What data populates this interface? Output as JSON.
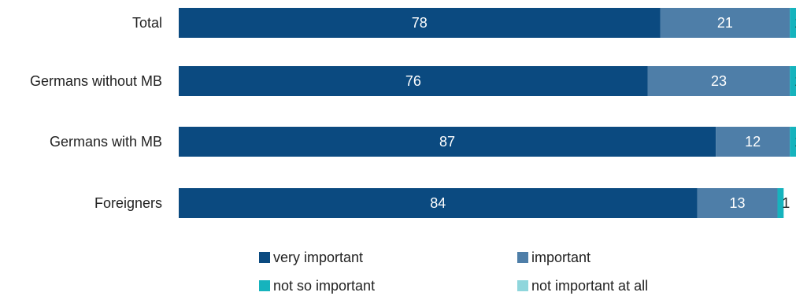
{
  "chart_data": {
    "type": "bar",
    "orientation": "horizontal",
    "stacked": true,
    "categories": [
      "Total",
      "Germans without MB",
      "Germans with MB",
      "Foreigners"
    ],
    "series": [
      {
        "name": "very important",
        "color": "#0b4a80",
        "values": [
          78,
          76,
          87,
          84
        ]
      },
      {
        "name": "important",
        "color": "#4e7ea8",
        "values": [
          21,
          23,
          12,
          13
        ]
      },
      {
        "name": "not so important",
        "color": "#16b3bd",
        "values": [
          1,
          1,
          1,
          1
        ]
      },
      {
        "name": "not important at all",
        "color": "#8fd6dc",
        "values": [
          0,
          0,
          0,
          0
        ]
      }
    ],
    "xlim": [
      0,
      100
    ],
    "grid": false,
    "legend": "bottom"
  }
}
